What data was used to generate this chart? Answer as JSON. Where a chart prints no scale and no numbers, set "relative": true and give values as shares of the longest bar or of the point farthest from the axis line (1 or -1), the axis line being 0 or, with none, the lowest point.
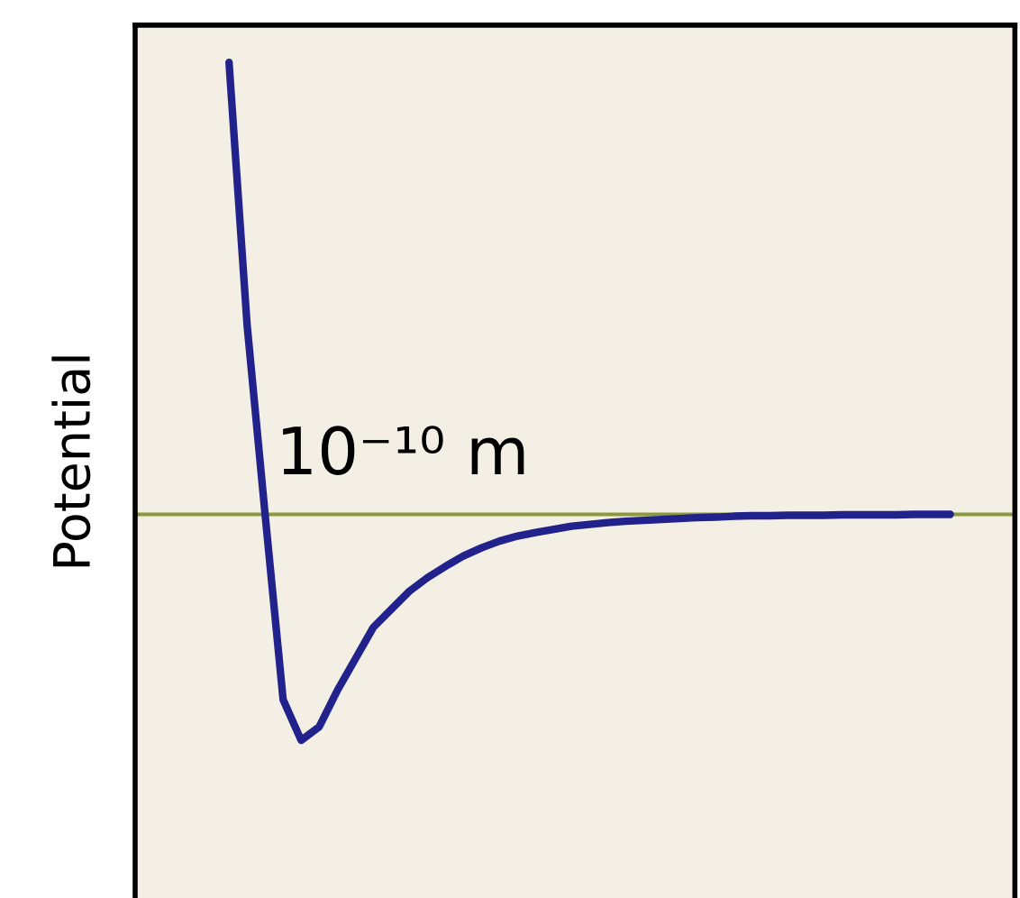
{
  "chart_data": {
    "type": "line",
    "relative": true,
    "ylabel": "Potential",
    "annotations": [
      "10⁻¹⁰ m"
    ],
    "grid": false,
    "ref_lines": [
      {
        "axis": "y",
        "value": 0,
        "color": "#8a9a3a"
      }
    ],
    "marker": "none",
    "line_style": "solid",
    "categories": [
      null,
      null,
      null,
      null,
      null,
      null,
      null,
      null,
      null,
      null,
      null,
      null,
      null,
      null,
      null,
      null,
      null,
      null,
      null,
      null,
      null,
      null,
      null,
      null,
      null,
      null,
      null,
      null,
      null,
      null,
      null,
      null,
      null,
      null,
      null,
      null,
      null,
      null,
      null,
      null,
      null
    ],
    "series": [
      {
        "color": "#22228c",
        "values": [
          1.0,
          0.42,
          0,
          -0.41,
          -0.5,
          -0.47,
          -0.39,
          -0.32,
          -0.25,
          -0.21,
          -0.17,
          -0.14,
          -0.115,
          -0.092,
          -0.074,
          -0.059,
          -0.048,
          -0.04,
          -0.033,
          -0.026,
          -0.022,
          -0.018,
          -0.015,
          -0.013,
          -0.011,
          -0.009,
          -0.007,
          -0.006,
          -0.004,
          -0.003,
          -0.003,
          -0.002,
          -0.002,
          -0.002,
          -0.001,
          -0.001,
          -0.001,
          -0.001,
          0,
          0,
          0
        ]
      }
    ]
  }
}
